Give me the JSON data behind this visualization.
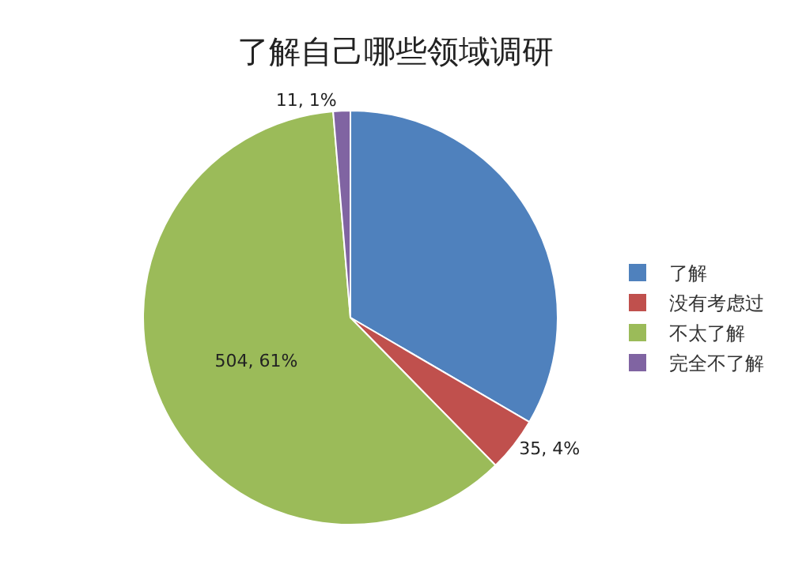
{
  "chart_data": {
    "type": "pie",
    "title": "了解自己哪些领域调研",
    "categories": [
      "了解",
      "没有考虑过",
      "不太了解",
      "完全不了解"
    ],
    "values": [
      276,
      35,
      504,
      11
    ],
    "colors": [
      "#4f81bd",
      "#c0504d",
      "#9bbb59",
      "#8064a2"
    ],
    "value_labels": [
      null,
      "35, 4%",
      "504, 61%",
      "11, 1%"
    ],
    "legend": "right"
  }
}
